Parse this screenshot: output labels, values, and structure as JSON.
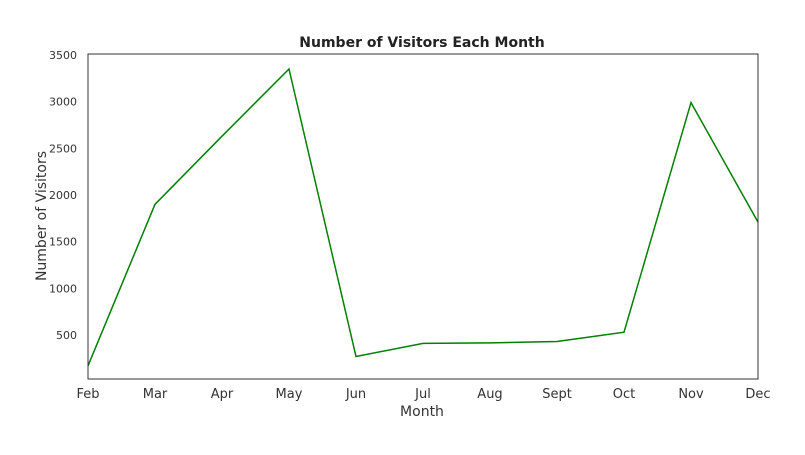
{
  "chart_data": {
    "type": "line",
    "title": "Number of Visitors Each Month",
    "xlabel": "Month",
    "ylabel": "Number of Visitors",
    "categories": [
      "Feb",
      "Mar",
      "Apr",
      "May",
      "Jun",
      "Jul",
      "Aug",
      "Sept",
      "Oct",
      "Nov",
      "Dec"
    ],
    "series": [
      {
        "values": [
          170,
          1900,
          2630,
          3350,
          270,
          410,
          415,
          430,
          530,
          2990,
          1710
        ],
        "color": "#008000"
      }
    ],
    "yticks": [
      500,
      1000,
      1500,
      2000,
      2500,
      3000,
      3500
    ],
    "ylim": [
      0,
      3500
    ],
    "grid": false,
    "legend": "none"
  }
}
